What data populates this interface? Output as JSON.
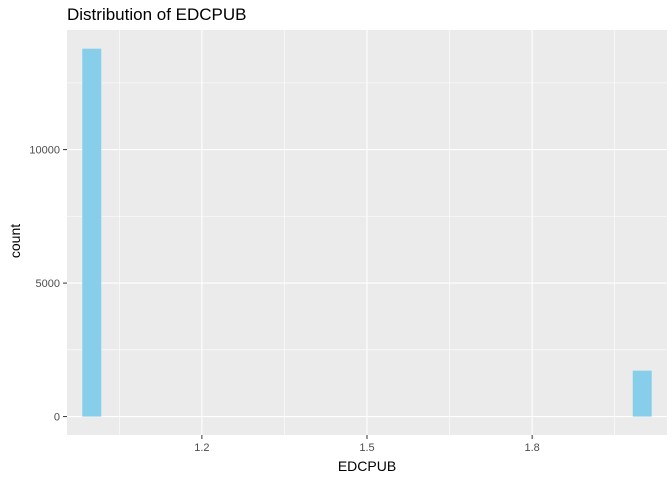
{
  "chart_data": {
    "type": "bar",
    "title": "Distribution of EDCPUB",
    "xlabel": "EDCPUB",
    "ylabel": "count",
    "xlim": [
      0.955,
      2.045
    ],
    "ylim": [
      -690,
      14480
    ],
    "x_ticks": [
      {
        "value": 1.2,
        "label": "1.2"
      },
      {
        "value": 1.5,
        "label": "1.5"
      },
      {
        "value": 1.8,
        "label": "1.8"
      }
    ],
    "y_ticks": [
      {
        "value": 0,
        "label": "0"
      },
      {
        "value": 5000,
        "label": "5000"
      },
      {
        "value": 10000,
        "label": "10000"
      }
    ],
    "bin_width": 0.0345,
    "bins": [
      {
        "x": 1.0,
        "count": 13780
      },
      {
        "x": 2.0,
        "count": 1720
      }
    ],
    "grid": true,
    "colors": {
      "bar": "#87CEEB",
      "panel": "#EBEBEB",
      "grid": "#FFFFFF",
      "tick_text": "#4D4D4D",
      "tick_mark": "#333333"
    }
  }
}
